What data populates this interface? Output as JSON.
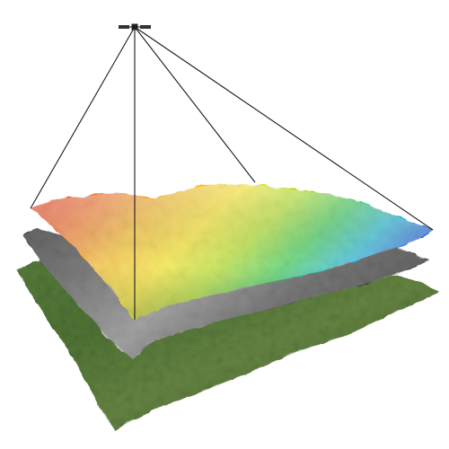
{
  "scene": {
    "subject": "satellite-terrain-layers",
    "layers": [
      {
        "name": "elevation-color-map",
        "gradient": [
          "#e8321e",
          "#f07a22",
          "#f6d21a",
          "#c8e01a",
          "#3ccb3c",
          "#16b7c8",
          "#1f5ad8"
        ]
      },
      {
        "name": "grayscale-relief",
        "colors": [
          "#2a2a2a",
          "#7a7a7a",
          "#d6d6d6"
        ]
      },
      {
        "name": "satellite-imagery",
        "colors": [
          "#2f5a22",
          "#4f7d33",
          "#7f8f55"
        ]
      }
    ],
    "satellite": {
      "icon": "satellite-icon",
      "color": "#222222"
    },
    "projection_lines": {
      "color": "#1a1a1a"
    },
    "background": "#ffffff"
  }
}
